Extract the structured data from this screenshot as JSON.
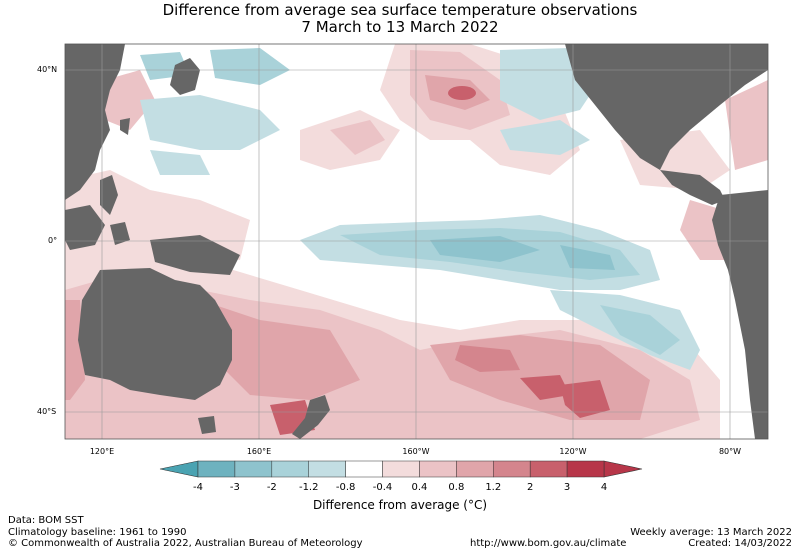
{
  "title": {
    "line1": "Difference from average sea surface temperature observations",
    "line2": "7 March to 13 March 2022"
  },
  "axes": {
    "lat_labels": [
      "40°N",
      "0°",
      "40°S"
    ],
    "lon_labels": [
      "120°E",
      "160°E",
      "160°W",
      "120°W",
      "80°W"
    ]
  },
  "colorbar": {
    "label": "Difference from average (°C)",
    "ticks": [
      "-4",
      "-3",
      "-2",
      "-1.2",
      "-0.8",
      "-0.4",
      "0.4",
      "0.8",
      "1.2",
      "2",
      "3",
      "4"
    ],
    "colors": [
      "#4aa3b2",
      "#6eb2bf",
      "#8ec3cd",
      "#a9d2d9",
      "#c3dee3",
      "#ffffff",
      "#f3dcdc",
      "#ebc3c6",
      "#e0a5aa",
      "#d4858d",
      "#c8606c",
      "#b73649"
    ]
  },
  "map": {
    "land_color": "#666666",
    "ocean_color": "#ffffff"
  },
  "footer": {
    "data_source": "Data: BOM SST",
    "baseline": "Climatology baseline: 1961 to 1990",
    "copyright": "© Commonwealth of Australia 2022, Australian Bureau of Meteorology",
    "url": "http://www.bom.gov.au/climate",
    "weekly": "Weekly average: 13 March 2022",
    "created": "Created: 14/03/2022"
  }
}
